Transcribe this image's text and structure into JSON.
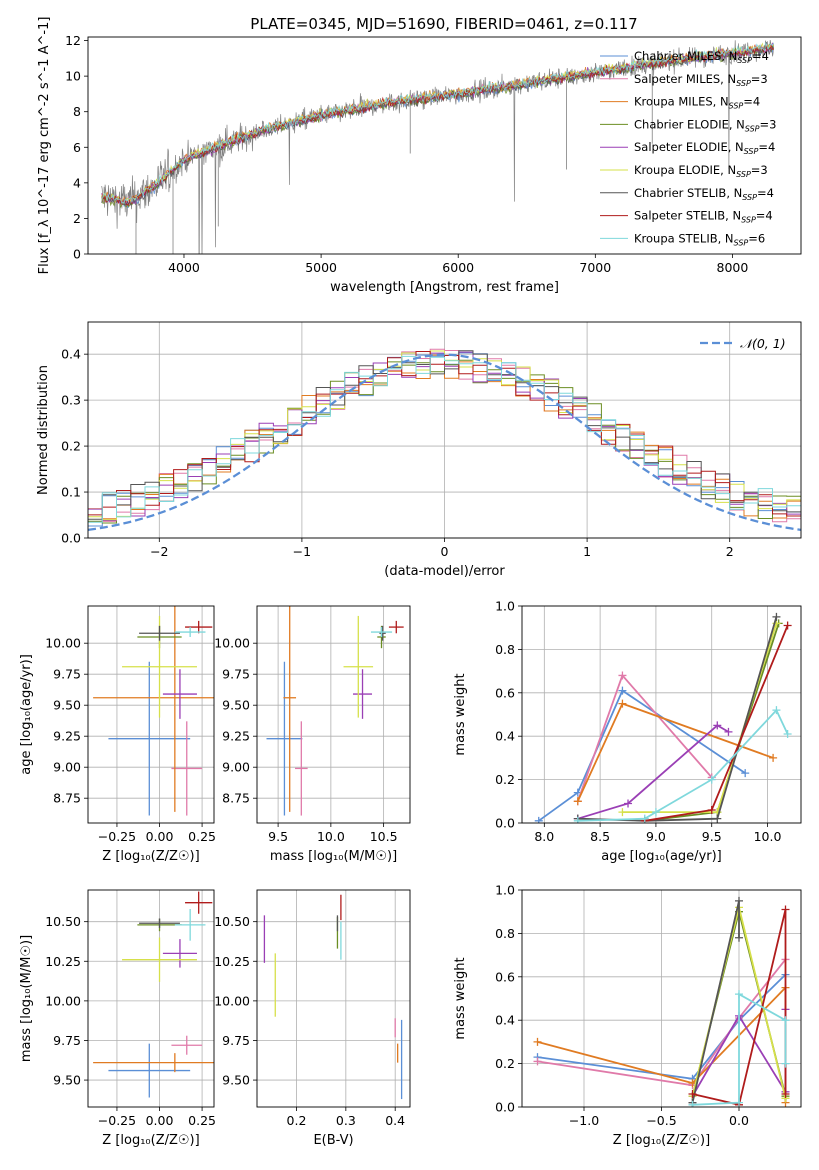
{
  "title": "PLATE=0345, MJD=51690, FIBERID=0461, z=0.117",
  "models": [
    {
      "label": "Chabrier MILES, N_SSP=4",
      "color": "#5b8fd6"
    },
    {
      "label": "Salpeter MILES, N_SSP=3",
      "color": "#e07aa9"
    },
    {
      "label": "Kroupa MILES, N_SSP=4",
      "color": "#e07b22"
    },
    {
      "label": "Chabrier ELODIE, N_SSP=3",
      "color": "#6b8e23"
    },
    {
      "label": "Salpeter ELODIE, N_SSP=4",
      "color": "#9a3fb5"
    },
    {
      "label": "Kroupa ELODIE, N_SSP=3",
      "color": "#d6e04a"
    },
    {
      "label": "Chabrier STELIB, N_SSP=4",
      "color": "#555555"
    },
    {
      "label": "Salpeter STELIB, N_SSP=4",
      "color": "#b01c1c"
    },
    {
      "label": "Kroupa STELIB, N_SSP=6",
      "color": "#7fd8dc"
    }
  ],
  "chart_data": [
    {
      "type": "line",
      "id": "spectrum",
      "xlabel": "wavelength [Angstrom, rest frame]",
      "ylabel": "Flux [f_λ 10^-17 erg cm^-2 s^-1 A^-1]",
      "xlim": [
        3300,
        8500
      ],
      "ylim": [
        0,
        12.2
      ],
      "xticks": [
        "4000",
        "5000",
        "6000",
        "7000",
        "8000"
      ],
      "yticks": [
        "0",
        "2",
        "4",
        "6",
        "8",
        "10",
        "12"
      ],
      "data_color": "#808080",
      "continuum": {
        "x": [
          3400,
          3600,
          3800,
          4000,
          4300,
          4600,
          5000,
          5500,
          6000,
          6500,
          7000,
          7500,
          8000,
          8300
        ],
        "y": [
          3.2,
          2.9,
          3.9,
          5.3,
          6.2,
          7.0,
          7.8,
          8.5,
          9.0,
          9.6,
          10.2,
          10.8,
          11.3,
          11.6
        ]
      },
      "legend_position": "upper right"
    },
    {
      "type": "line",
      "id": "histogram",
      "xlabel": "(data-model)/error",
      "ylabel": "Normed distribution",
      "xlim": [
        -2.5,
        2.5
      ],
      "ylim": [
        0,
        0.47
      ],
      "xticks": [
        "−2",
        "−1",
        "0",
        "1",
        "2"
      ],
      "yticks": [
        "0.0",
        "0.1",
        "0.2",
        "0.3",
        "0.4"
      ],
      "grid": true,
      "reference_label": "𝒩(0, 1)",
      "reference_color": "#5b8fd6",
      "legend_position": "upper right"
    },
    {
      "type": "scatter",
      "id": "age_vs_Z",
      "xlabel": "Z [log₁₀(Z/Z☉)]",
      "ylabel": "age  [log₁₀(age/yr)]",
      "xlim": [
        -0.42,
        0.32
      ],
      "ylim": [
        8.55,
        10.3
      ],
      "xticks": [
        "−0.25",
        "0.00",
        "0.25"
      ],
      "yticks": [
        "8.75",
        "9.00",
        "9.25",
        "9.50",
        "9.75",
        "10.00"
      ],
      "grid": true,
      "points": [
        {
          "x": -0.06,
          "y": 9.23,
          "xerr": 0.24,
          "yerr": 0.62
        },
        {
          "x": 0.16,
          "y": 8.99,
          "xerr": 0.09,
          "yerr": 0.38
        },
        {
          "x": 0.09,
          "y": 9.56,
          "xerr": 0.48,
          "yerr": 0.92
        },
        {
          "x": 0.0,
          "y": 10.05,
          "xerr": 0.13,
          "yerr": 0.09
        },
        {
          "x": 0.12,
          "y": 9.59,
          "xerr": 0.1,
          "yerr": 0.2
        },
        {
          "x": 0.0,
          "y": 9.81,
          "xerr": 0.22,
          "yerr": 0.41
        },
        {
          "x": 0.0,
          "y": 10.08,
          "xerr": 0.12,
          "yerr": 0.06
        },
        {
          "x": 0.23,
          "y": 10.13,
          "xerr": 0.08,
          "yerr": 0.05
        },
        {
          "x": 0.18,
          "y": 10.09,
          "xerr": 0.09,
          "yerr": 0.04
        }
      ]
    },
    {
      "type": "scatter",
      "id": "age_vs_mass",
      "xlabel": "mass [log₁₀(M/M☉)]",
      "ylabel": "",
      "xlim": [
        9.3,
        10.75
      ],
      "ylim": [
        8.55,
        10.3
      ],
      "xticks": [
        "9.5",
        "10.0",
        "10.5"
      ],
      "yticks": [
        "8.75",
        "9.00",
        "9.25",
        "9.50",
        "9.75",
        "10.00"
      ],
      "grid": true,
      "points": [
        {
          "x": 9.56,
          "y": 9.23,
          "xerr": 0.17,
          "yerr": 0.62
        },
        {
          "x": 9.72,
          "y": 8.99,
          "xerr": 0.06,
          "yerr": 0.38
        },
        {
          "x": 9.61,
          "y": 9.56,
          "xerr": 0.06,
          "yerr": 0.92
        },
        {
          "x": 10.48,
          "y": 10.05,
          "xerr": 0.04,
          "yerr": 0.09
        },
        {
          "x": 10.3,
          "y": 9.59,
          "xerr": 0.09,
          "yerr": 0.2
        },
        {
          "x": 10.26,
          "y": 9.81,
          "xerr": 0.14,
          "yerr": 0.41
        },
        {
          "x": 10.49,
          "y": 10.08,
          "xerr": 0.03,
          "yerr": 0.06
        },
        {
          "x": 10.62,
          "y": 10.13,
          "xerr": 0.07,
          "yerr": 0.05
        },
        {
          "x": 10.48,
          "y": 10.09,
          "xerr": 0.1,
          "yerr": 0.04
        }
      ]
    },
    {
      "type": "line",
      "id": "weight_vs_age",
      "xlabel": "age  [log₁₀(age/yr)]",
      "ylabel": "mass weight",
      "xlim": [
        7.8,
        10.3
      ],
      "ylim": [
        0,
        1.0
      ],
      "xticks": [
        "8.0",
        "8.5",
        "9.0",
        "9.5",
        "10.0"
      ],
      "yticks": [
        "0.0",
        "0.2",
        "0.4",
        "0.6",
        "0.8",
        "1.0"
      ],
      "grid": true,
      "series": [
        {
          "x": [
            7.95,
            8.3,
            8.7,
            9.8
          ],
          "y": [
            0.01,
            0.14,
            0.61,
            0.23
          ]
        },
        {
          "x": [
            8.3,
            8.7,
            9.5
          ],
          "y": [
            0.1,
            0.68,
            0.21
          ]
        },
        {
          "x": [
            8.3,
            8.7,
            10.05
          ],
          "y": [
            0.1,
            0.55,
            0.3
          ]
        },
        {
          "x": [
            8.9,
            9.55,
            10.1
          ],
          "y": [
            0.01,
            0.05,
            0.92
          ]
        },
        {
          "x": [
            8.3,
            8.75,
            9.55,
            9.65
          ],
          "y": [
            0.02,
            0.09,
            0.45,
            0.42
          ]
        },
        {
          "x": [
            8.7,
            9.55,
            10.08
          ],
          "y": [
            0.05,
            0.05,
            0.92
          ]
        },
        {
          "x": [
            8.3,
            8.9,
            9.55,
            10.08
          ],
          "y": [
            0.02,
            0.01,
            0.02,
            0.95
          ]
        },
        {
          "x": [
            8.9,
            9.5,
            10.18
          ],
          "y": [
            0.01,
            0.06,
            0.91
          ]
        },
        {
          "x": [
            8.3,
            8.9,
            9.0,
            9.5,
            10.08,
            10.18
          ],
          "y": [
            0.01,
            0.02,
            0.05,
            0.2,
            0.52,
            0.41
          ]
        }
      ]
    },
    {
      "type": "scatter",
      "id": "mass_vs_Z",
      "xlabel": "Z [log₁₀(Z/Z☉)]",
      "ylabel": "mass [log₁₀(M/M☉)]",
      "xlim": [
        -0.42,
        0.32
      ],
      "ylim": [
        9.33,
        10.7
      ],
      "xticks": [
        "−0.25",
        "0.00",
        "0.25"
      ],
      "yticks": [
        "9.50",
        "9.75",
        "10.00",
        "10.25",
        "10.50"
      ],
      "grid": true,
      "points": [
        {
          "x": -0.06,
          "y": 9.56,
          "xerr": 0.24,
          "yerr": 0.17
        },
        {
          "x": 0.16,
          "y": 9.72,
          "xerr": 0.09,
          "yerr": 0.06
        },
        {
          "x": 0.09,
          "y": 9.61,
          "xerr": 0.48,
          "yerr": 0.06
        },
        {
          "x": 0.0,
          "y": 10.48,
          "xerr": 0.13,
          "yerr": 0.04
        },
        {
          "x": 0.12,
          "y": 10.3,
          "xerr": 0.1,
          "yerr": 0.09
        },
        {
          "x": 0.0,
          "y": 10.26,
          "xerr": 0.22,
          "yerr": 0.14
        },
        {
          "x": 0.0,
          "y": 10.49,
          "xerr": 0.12,
          "yerr": 0.03
        },
        {
          "x": 0.23,
          "y": 10.62,
          "xerr": 0.08,
          "yerr": 0.07
        },
        {
          "x": 0.18,
          "y": 10.48,
          "xerr": 0.09,
          "yerr": 0.1
        }
      ]
    },
    {
      "type": "scatter",
      "id": "mass_vs_ebv",
      "xlabel": "E(B-V)",
      "ylabel": "",
      "xlim": [
        0.12,
        0.43
      ],
      "ylim": [
        9.33,
        10.7
      ],
      "xticks": [
        "0.2",
        "0.3",
        "0.4"
      ],
      "yticks": [
        "9.50",
        "9.75",
        "10.00",
        "10.25",
        "10.50"
      ],
      "grid": true,
      "points": [
        {
          "x": 0.413,
          "y": 9.63,
          "yerr": 0.25
        },
        {
          "x": 0.4,
          "y": 9.83,
          "yerr": 0.06
        },
        {
          "x": 0.405,
          "y": 9.67,
          "yerr": 0.06
        },
        {
          "x": 0.283,
          "y": 10.43,
          "yerr": 0.1
        },
        {
          "x": 0.135,
          "y": 10.39,
          "yerr": 0.15
        },
        {
          "x": 0.157,
          "y": 10.1,
          "yerr": 0.2
        },
        {
          "x": 0.283,
          "y": 10.49,
          "yerr": 0.05
        },
        {
          "x": 0.29,
          "y": 10.59,
          "yerr": 0.08
        },
        {
          "x": 0.29,
          "y": 10.38,
          "yerr": 0.12
        }
      ]
    },
    {
      "type": "line",
      "id": "weight_vs_Z",
      "xlabel": "Z [log₁₀(Z/Z☉)]",
      "ylabel": "mass weight",
      "xlim": [
        -1.4,
        0.4
      ],
      "ylim": [
        0,
        1.0
      ],
      "xticks": [
        "−1.0",
        "−0.5",
        "0.0"
      ],
      "yticks": [
        "0.0",
        "0.2",
        "0.4",
        "0.6",
        "0.8",
        "1.0"
      ],
      "grid": true,
      "series": [
        {
          "x": [
            -1.3,
            -0.3,
            0.0,
            0.3
          ],
          "y": [
            0.23,
            0.13,
            0.4,
            0.61
          ]
        },
        {
          "x": [
            -1.3,
            -0.3,
            0.0,
            0.3
          ],
          "y": [
            0.21,
            0.1,
            0.41,
            0.68
          ]
        },
        {
          "x": [
            -1.3,
            -0.3,
            0.3,
            0.3
          ],
          "y": [
            0.3,
            0.11,
            0.55,
            0.02
          ]
        },
        {
          "x": [
            -0.3,
            0.0,
            0.3,
            0.3
          ],
          "y": [
            0.05,
            0.9,
            0.05,
            0.05
          ]
        },
        {
          "x": [
            -0.3,
            0.0,
            0.3,
            0.3
          ],
          "y": [
            0.05,
            0.42,
            0.07,
            0.45
          ]
        },
        {
          "x": [
            -0.3,
            0.0,
            0.3
          ],
          "y": [
            0.05,
            0.92,
            0.04
          ]
        },
        {
          "x": [
            -0.3,
            -0.3,
            0.0,
            0.0
          ],
          "y": [
            0.02,
            0.02,
            0.95,
            0.78
          ]
        },
        {
          "x": [
            -0.3,
            0.0,
            0.3,
            0.3
          ],
          "y": [
            0.06,
            0.01,
            0.91,
            0.06
          ]
        },
        {
          "x": [
            -0.3,
            0.0,
            0.0,
            0.3,
            0.3
          ],
          "y": [
            0.01,
            0.02,
            0.52,
            0.4,
            0.2
          ]
        }
      ]
    }
  ]
}
